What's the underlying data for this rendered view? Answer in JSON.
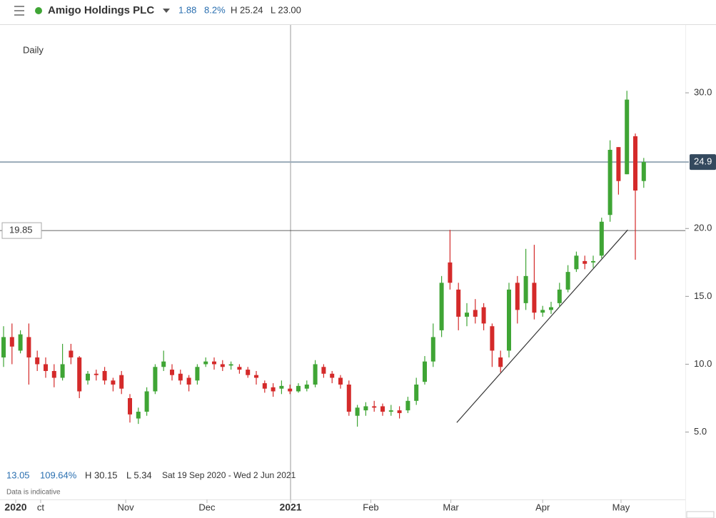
{
  "header": {
    "title": "Amigo Holdings PLC",
    "change": "1.88",
    "change_pct": "8.2%",
    "high": "H 25.24",
    "low": "L 23.00"
  },
  "chart_data": {
    "type": "candlestick",
    "interval": "Daily",
    "categories": [
      null,
      null,
      null,
      null,
      null,
      null,
      null,
      null,
      null,
      null,
      null,
      null,
      null,
      null,
      null,
      null,
      null,
      null,
      null,
      null,
      null,
      null,
      null,
      null,
      null,
      null,
      null,
      null,
      null,
      null,
      null,
      null,
      null,
      null,
      null,
      null,
      null,
      null,
      null,
      null,
      null,
      null,
      null,
      null,
      null,
      null,
      null,
      null,
      null,
      null,
      null,
      null,
      null,
      null,
      null,
      null,
      null,
      null,
      null,
      null,
      null,
      null,
      null,
      null,
      null,
      null,
      null,
      null,
      null,
      null,
      null,
      null,
      null,
      null,
      null,
      null,
      null
    ],
    "open": [
      10.5,
      12,
      11,
      12,
      10.5,
      10,
      9.5,
      9,
      11,
      10.5,
      8.8,
      9.3,
      9.5,
      8.8,
      9.2,
      7.5,
      6,
      6.5,
      8,
      9.8,
      9.6,
      9.3,
      9,
      8.8,
      10,
      10.2,
      10,
      9.9,
      9.8,
      9.6,
      9.2,
      8.6,
      8.3,
      8.2,
      8.2,
      8,
      8.2,
      8.5,
      9.8,
      9.3,
      9,
      8.5,
      6.2,
      6.6,
      6.9,
      6.9,
      6.5,
      6.6,
      6.6,
      7.3,
      8.7,
      10.2,
      12.5,
      17.5,
      15.5,
      13.5,
      14,
      14.2,
      12.8,
      10.5,
      11,
      16,
      14.5,
      16,
      13.8,
      14,
      14.5,
      15.5,
      17,
      17.6,
      17.5,
      18,
      21,
      26,
      24,
      26.8,
      23.5
    ],
    "high": [
      12.8,
      13,
      12.5,
      13,
      11,
      10.5,
      10,
      11.5,
      11.5,
      10.6,
      9.5,
      9.6,
      9.8,
      9,
      9.5,
      7.8,
      6.8,
      8.3,
      10,
      11,
      10,
      9.6,
      9.2,
      10,
      10.5,
      10.5,
      10.3,
      10.2,
      10,
      9.8,
      9.5,
      8.8,
      8.6,
      8.8,
      8.5,
      8.6,
      8.8,
      10.3,
      10,
      9.5,
      9.2,
      8.8,
      7,
      7.2,
      7.3,
      7.1,
      7,
      6.9,
      7.6,
      9,
      10.6,
      13,
      16.5,
      19.9,
      16,
      14.5,
      14.8,
      14.5,
      13,
      11,
      16,
      16.5,
      18.5,
      18.8,
      14.3,
      14.6,
      16,
      17.3,
      18.3,
      18,
      18,
      20.8,
      26.5,
      26,
      30.15,
      27,
      25.2
    ],
    "low": [
      9.8,
      10,
      10.8,
      8.5,
      9.5,
      9,
      8.3,
      8.8,
      10,
      7.5,
      8.5,
      8.8,
      8.5,
      8,
      7.8,
      5.7,
      5.6,
      6.2,
      7.8,
      9.5,
      8.8,
      8.5,
      8,
      8.5,
      9.8,
      9.6,
      9.5,
      9.6,
      9.3,
      9,
      8.5,
      7.9,
      7.6,
      7.8,
      7.8,
      7.9,
      8,
      8.3,
      9,
      8.6,
      8.2,
      6.2,
      5.4,
      6.2,
      6.5,
      6.2,
      6.2,
      6,
      6.4,
      7,
      8.5,
      9.8,
      12,
      15.5,
      12.5,
      12.8,
      13,
      12.5,
      9.8,
      9.4,
      10.5,
      13,
      14,
      13.3,
      13.5,
      13.7,
      14.2,
      15.3,
      16.8,
      17,
      17.1,
      17.8,
      20.5,
      22.5,
      24,
      17.7,
      23
    ],
    "close": [
      12,
      11.3,
      12.2,
      10.5,
      10,
      9.5,
      9,
      10,
      10.5,
      8,
      9.3,
      9.2,
      8.8,
      8.5,
      8.2,
      6.3,
      6.5,
      8,
      9.8,
      10.2,
      9.2,
      8.8,
      8.5,
      9.8,
      10.2,
      10,
      9.8,
      10,
      9.6,
      9.2,
      9,
      8.2,
      8,
      8.4,
      8,
      8.4,
      8.5,
      10,
      9.3,
      9,
      8.5,
      6.5,
      6.8,
      6.9,
      6.8,
      6.5,
      6.6,
      6.4,
      7.3,
      8.5,
      10.2,
      12,
      16,
      16,
      13.5,
      13.8,
      13.5,
      13,
      11,
      9.8,
      15.5,
      14,
      16.5,
      13.8,
      14,
      14.2,
      15.5,
      16.8,
      18,
      17.4,
      17.6,
      20.5,
      25.8,
      23.5,
      29.5,
      22.8,
      24.9
    ],
    "colors": {
      "up": "#3fa535",
      "down": "#d42a2a"
    },
    "ylim": [
      2.4,
      35
    ],
    "yticks": [
      {
        "value": 5,
        "label": "5.0"
      },
      {
        "value": 10,
        "label": "10.0"
      },
      {
        "value": 15,
        "label": "15.0"
      },
      {
        "value": 20,
        "label": "20.0"
      },
      {
        "value": 30,
        "label": "30.0"
      }
    ],
    "xticks": [
      {
        "value": 1.44,
        "label": "2020"
      },
      {
        "value": 4.4,
        "label": "ct"
      },
      {
        "value": 14.5,
        "label": "Nov"
      },
      {
        "value": 24.15,
        "label": "Dec"
      },
      {
        "value": 34.07,
        "label": "2021"
      },
      {
        "value": 43.6,
        "label": "Feb"
      },
      {
        "value": 53.1,
        "label": "Mar"
      },
      {
        "value": 64,
        "label": "Apr"
      },
      {
        "value": 73.3,
        "label": "May"
      }
    ],
    "crosshair_x": 34.07,
    "reference_line": 19.85,
    "last_price": 24.9,
    "trendline": {
      "x": [
        53.8,
        74.1
      ],
      "y": [
        5.7,
        19.9
      ]
    }
  },
  "footer": {
    "last": "13.05",
    "change_pct": "109.64%",
    "high": "H 30.15",
    "low": "L 5.34",
    "range": "Sat 19 Sep 2020 - Wed 2 Jun 2021",
    "note": "Data is indicative"
  }
}
